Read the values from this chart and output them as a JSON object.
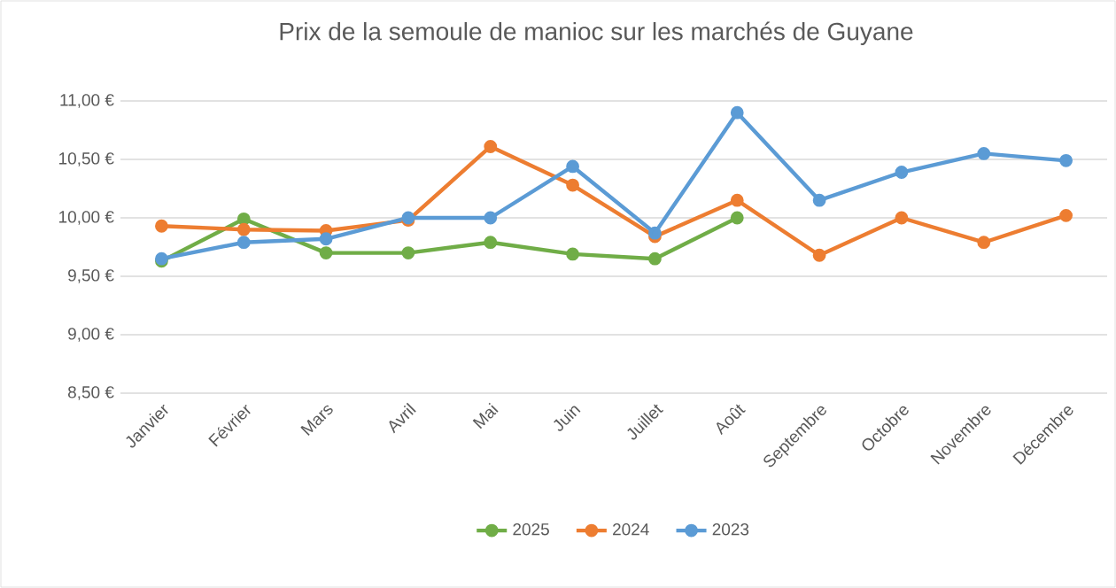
{
  "chart_data": {
    "type": "line",
    "title": "Prix de la semoule de manioc sur les marchés de Guyane",
    "categories": [
      "Janvier",
      "Février",
      "Mars",
      "Avril",
      "Mai",
      "Juin",
      "Juillet",
      "Août",
      "Septembre",
      "Octobre",
      "Novembre",
      "Décembre"
    ],
    "series": [
      {
        "name": "2025",
        "color": "#70ad47",
        "values": [
          9.63,
          9.99,
          9.7,
          9.7,
          9.79,
          9.69,
          9.65,
          10.0,
          null,
          null,
          null,
          null
        ]
      },
      {
        "name": "2024",
        "color": "#ed7d31",
        "values": [
          9.93,
          9.9,
          9.89,
          9.98,
          10.61,
          10.28,
          9.84,
          10.15,
          9.68,
          10.0,
          9.79,
          10.02
        ]
      },
      {
        "name": "2023",
        "color": "#5b9bd5",
        "values": [
          9.65,
          9.79,
          9.82,
          10.0,
          10.0,
          10.44,
          9.87,
          10.9,
          10.15,
          10.39,
          10.55,
          10.49
        ]
      }
    ],
    "ylim": [
      8.5,
      11
    ],
    "yticks": [
      {
        "value": 8.5,
        "label": "8,50 €"
      },
      {
        "value": 9,
        "label": "9,00 €"
      },
      {
        "value": 9.5,
        "label": "9,50 €"
      },
      {
        "value": 10,
        "label": "10,00 €"
      },
      {
        "value": 10.5,
        "label": "10,50 €"
      },
      {
        "value": 11,
        "label": "11,00 €"
      }
    ],
    "grid": "y",
    "legend": "bottom",
    "marker": "circle",
    "line_style": "solid"
  }
}
